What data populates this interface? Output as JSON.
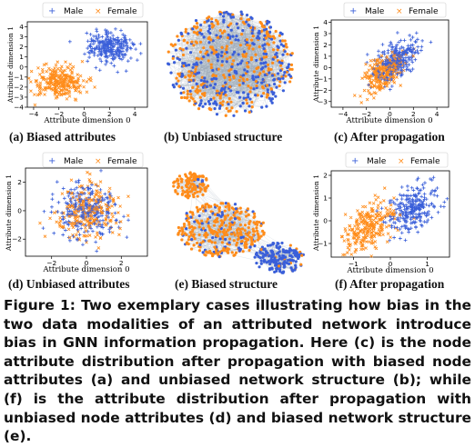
{
  "legend": {
    "male": "Male",
    "female": "Female"
  },
  "colors": {
    "male": "#3a5fd9",
    "female": "#ff8c1a",
    "edge": "#9aa7b5"
  },
  "subcaptions": {
    "a": "(a) Biased attributes",
    "b": "(b) Unbiased structure",
    "c": "(c) After propagation",
    "d": "(d) Unbiased attributes",
    "e": "(e) Biased structure",
    "f": "(f) After propagation"
  },
  "axes": {
    "xlabel": "Attribute dimension 0",
    "ylabel": "Attribute dimension 1"
  },
  "figure_caption": "Figure 1: Two exemplary cases illustrating how bias in the two data modalities of an attributed network introduce bias in GNN information propagation. Here (c) is the node attribute distribution after propagation with biased node attributes (a) and unbiased network structure (b); while (f) is the attribute distribution after propagation with unbiased node attributes (d) and biased network structure (e).",
  "chart_data": [
    {
      "panel": "a",
      "type": "scatter",
      "xlabel": "Attribute dimension 0",
      "ylabel": "Attribute dimension 1",
      "xticks": [
        -4,
        -2,
        0,
        2,
        4
      ],
      "yticks": [
        -4,
        -3,
        -2,
        -1,
        0,
        1,
        2,
        3,
        4
      ],
      "xlim": [
        -4.5,
        5
      ],
      "ylim": [
        -4,
        4.5
      ],
      "series": [
        {
          "name": "Male",
          "marker": "+",
          "center": [
            2,
            2
          ],
          "spread": [
            0.9,
            0.75
          ]
        },
        {
          "name": "Female",
          "marker": "x",
          "center": [
            -2,
            -1.5
          ],
          "spread": [
            1.0,
            0.8
          ]
        }
      ]
    },
    {
      "panel": "b",
      "type": "network",
      "layout": "single mixed cluster"
    },
    {
      "panel": "c",
      "type": "scatter",
      "xlabel": "Attribute dimension 0",
      "ylabel": "Attribute dimension 1",
      "xticks": [
        -4,
        -2,
        0,
        2,
        4
      ],
      "yticks": [
        -3,
        -2,
        -1,
        0,
        1,
        2,
        3,
        4
      ],
      "xlim": [
        -5,
        5
      ],
      "ylim": [
        -3.5,
        4.2
      ],
      "series": [
        {
          "name": "Male",
          "marker": "+",
          "center": [
            0.6,
            0.7
          ],
          "spread": [
            0.9,
            0.8
          ]
        },
        {
          "name": "Female",
          "marker": "x",
          "center": [
            -0.6,
            -0.5
          ],
          "spread": [
            0.9,
            0.8
          ]
        }
      ]
    },
    {
      "panel": "d",
      "type": "scatter",
      "xlabel": "Attribute dimension 0",
      "ylabel": "Attribute dimension 1",
      "xticks": [
        -2,
        0,
        2
      ],
      "yticks": [
        -2,
        0,
        2
      ],
      "xlim": [
        -3.5,
        3.5
      ],
      "ylim": [
        -3.2,
        3
      ],
      "series": [
        {
          "name": "Male",
          "marker": "+",
          "center": [
            0,
            0
          ],
          "spread": [
            0.9,
            0.9
          ]
        },
        {
          "name": "Female",
          "marker": "x",
          "center": [
            0,
            0
          ],
          "spread": [
            0.9,
            0.9
          ]
        }
      ]
    },
    {
      "panel": "e",
      "type": "network",
      "layout": "three clusters, one mostly male"
    },
    {
      "panel": "f",
      "type": "scatter",
      "xlabel": "Attribute dimension 0",
      "ylabel": "Attribute dimension 1",
      "xticks": [
        -1,
        0,
        1
      ],
      "yticks": [
        -1,
        0,
        1,
        2
      ],
      "xlim": [
        -1.6,
        1.6
      ],
      "ylim": [
        -1.6,
        2.2
      ],
      "series": [
        {
          "name": "Male",
          "marker": "+",
          "center": [
            0.6,
            0.5
          ],
          "spread": [
            0.35,
            0.45
          ]
        },
        {
          "name": "Female",
          "marker": "x",
          "center": [
            -0.6,
            -0.3
          ],
          "spread": [
            0.35,
            0.45
          ]
        }
      ]
    }
  ]
}
